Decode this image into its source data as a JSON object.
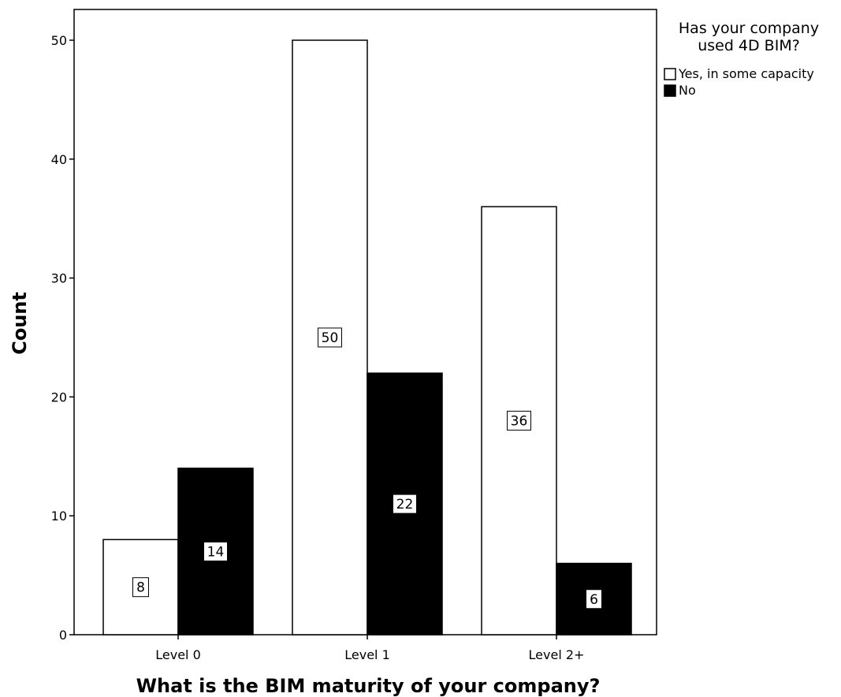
{
  "chart_data": {
    "type": "bar",
    "categories": [
      "Level 0",
      "Level 1",
      "Level 2+"
    ],
    "series": [
      {
        "name": "Yes, in some capacity",
        "values": [
          8,
          50,
          36
        ],
        "color": "#ffffff"
      },
      {
        "name": "No",
        "values": [
          14,
          22,
          6
        ],
        "color": "#000000"
      }
    ],
    "xlabel": "What is the BIM maturity of your company?",
    "ylabel": "Count",
    "ylim": [
      0,
      50
    ],
    "yticks": [
      0,
      10,
      20,
      30,
      40,
      50
    ],
    "data_labels": true,
    "grid": false,
    "legend": {
      "title_lines": [
        "Has your company",
        "used 4D BIM?"
      ],
      "placement": "top-right outside plot"
    }
  }
}
